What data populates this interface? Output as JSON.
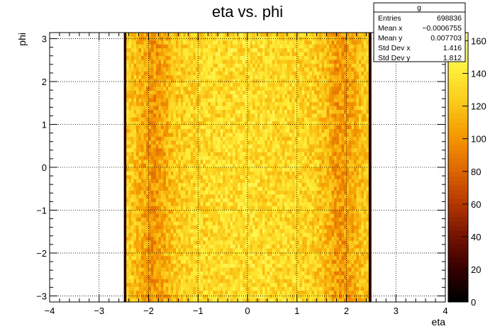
{
  "chart_data": {
    "type": "heatmap",
    "title": "eta vs. phi",
    "xlabel": "eta",
    "ylabel": "phi",
    "xlim": [
      -4,
      4
    ],
    "ylim": [
      -3.1416,
      3.1416
    ],
    "x_ticks": [
      -4,
      -3,
      -2,
      -1,
      0,
      1,
      2,
      3,
      4
    ],
    "y_ticks": [
      -3,
      -2,
      -1,
      0,
      1,
      2,
      3
    ],
    "x_tick_labels": [
      "−4",
      "−3",
      "−2",
      "−1",
      "0",
      "1",
      "2",
      "3",
      "4"
    ],
    "y_tick_labels": [
      "−3",
      "−2",
      "−1",
      "0",
      "1",
      "2",
      "3"
    ],
    "grid": true,
    "filled_eta_range": [
      -2.5,
      2.5
    ],
    "z_range": [
      0,
      165
    ],
    "z_ticks": [
      0,
      20,
      40,
      60,
      80,
      100,
      120,
      140,
      160
    ],
    "z_tick_labels": [
      "0",
      "20",
      "40",
      "60",
      "80",
      "100",
      "120",
      "140",
      "160"
    ],
    "palette": [
      "#000000",
      "#3a0000",
      "#7a1400",
      "#b83b00",
      "#e06a00",
      "#f59a00",
      "#fbcb1a",
      "#ffef3a",
      "#ffff9a"
    ],
    "stats": {
      "name": "g",
      "rows": [
        {
          "label": "Entries",
          "value": "698836"
        },
        {
          "label": "Mean x",
          "value": "−0.0006755"
        },
        {
          "label": "Mean y",
          "value": "0.007703"
        },
        {
          "label": "Std Dev x",
          "value": "1.416"
        },
        {
          "label": "Std Dev y",
          "value": "1.812"
        }
      ]
    }
  }
}
